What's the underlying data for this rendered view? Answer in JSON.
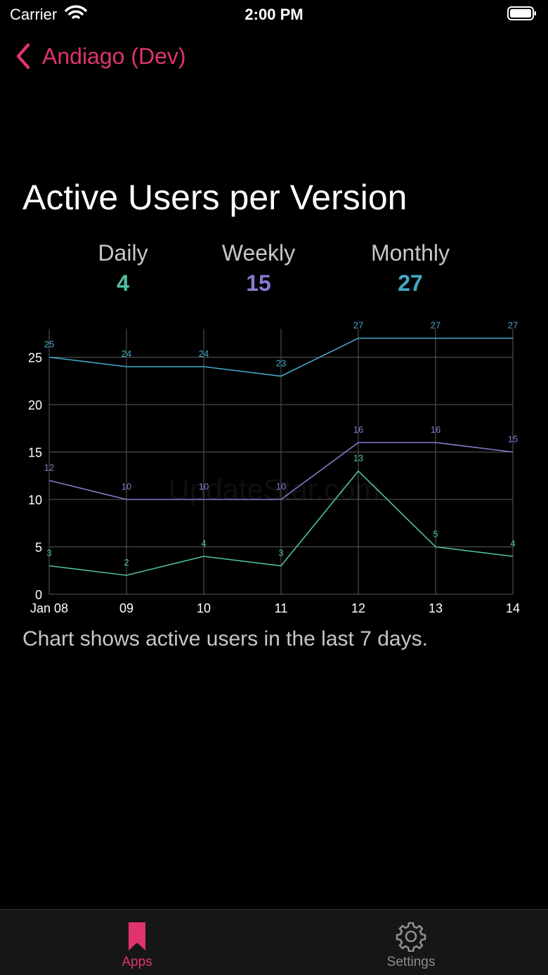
{
  "status_bar": {
    "carrier": "Carrier",
    "time": "2:00 PM"
  },
  "nav": {
    "back_label": "Andiago (Dev)"
  },
  "page": {
    "title": "Active Users per Version",
    "caption": "Chart shows active users in the last 7 days.",
    "watermark": "UpdateStar.com"
  },
  "summary": {
    "daily": {
      "label": "Daily",
      "value": "4"
    },
    "weekly": {
      "label": "Weekly",
      "value": "15"
    },
    "monthly": {
      "label": "Monthly",
      "value": "27"
    }
  },
  "colors": {
    "accent": "#e0336d",
    "daily": "#4fbfa3",
    "weekly": "#8a79cf",
    "monthly": "#43a9c7",
    "grid": "#5a5a5a"
  },
  "chart_data": {
    "type": "line",
    "categories": [
      "Jan 08",
      "09",
      "10",
      "11",
      "12",
      "13",
      "14"
    ],
    "ylim": [
      0,
      28
    ],
    "yticks": [
      0,
      5,
      10,
      15,
      20,
      25
    ],
    "grid": true,
    "series": [
      {
        "key": "monthly",
        "values": [
          25,
          24,
          24,
          23,
          27,
          27,
          27
        ]
      },
      {
        "key": "weekly",
        "values": [
          12,
          10,
          10,
          10,
          16,
          16,
          15
        ]
      },
      {
        "key": "daily",
        "values": [
          3,
          2,
          4,
          3,
          13,
          5,
          4
        ]
      }
    ]
  },
  "tabs": [
    {
      "label": "Apps",
      "icon": "bookmark-icon",
      "active": true
    },
    {
      "label": "Settings",
      "icon": "gear-icon",
      "active": false
    }
  ]
}
